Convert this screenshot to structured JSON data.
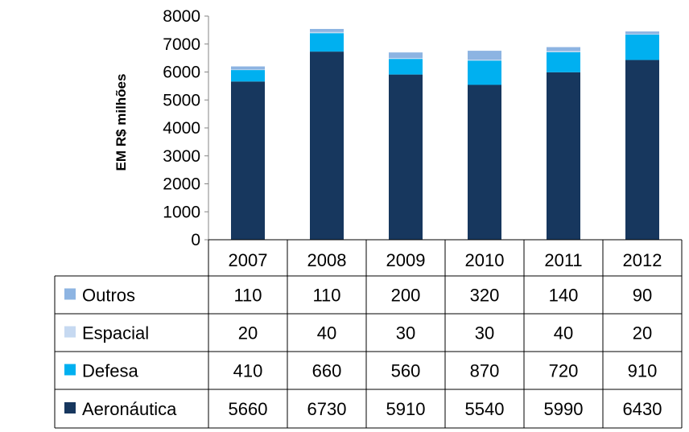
{
  "chart_data": {
    "type": "bar",
    "stacked": true,
    "categories": [
      "2007",
      "2008",
      "2009",
      "2010",
      "2011",
      "2012"
    ],
    "ylabel": "EM R$ milhões",
    "ylim": [
      0,
      8000
    ],
    "yticks": [
      0,
      1000,
      2000,
      3000,
      4000,
      5000,
      6000,
      7000,
      8000
    ],
    "grid": false,
    "legend": "data-table",
    "series": [
      {
        "name": "Aeronáutica",
        "color": "#17375E",
        "values": [
          5660,
          6730,
          5910,
          5540,
          5990,
          6430
        ]
      },
      {
        "name": "Defesa",
        "color": "#00B0F0",
        "values": [
          410,
          660,
          560,
          870,
          720,
          910
        ]
      },
      {
        "name": "Espacial",
        "color": "#C6D9F1",
        "values": [
          20,
          40,
          30,
          30,
          40,
          20
        ]
      },
      {
        "name": "Outros",
        "color": "#8DB4E2",
        "values": [
          110,
          110,
          200,
          320,
          140,
          90
        ]
      }
    ],
    "table_rows": [
      "Outros",
      "Espacial",
      "Defesa",
      "Aeronáutica"
    ]
  }
}
